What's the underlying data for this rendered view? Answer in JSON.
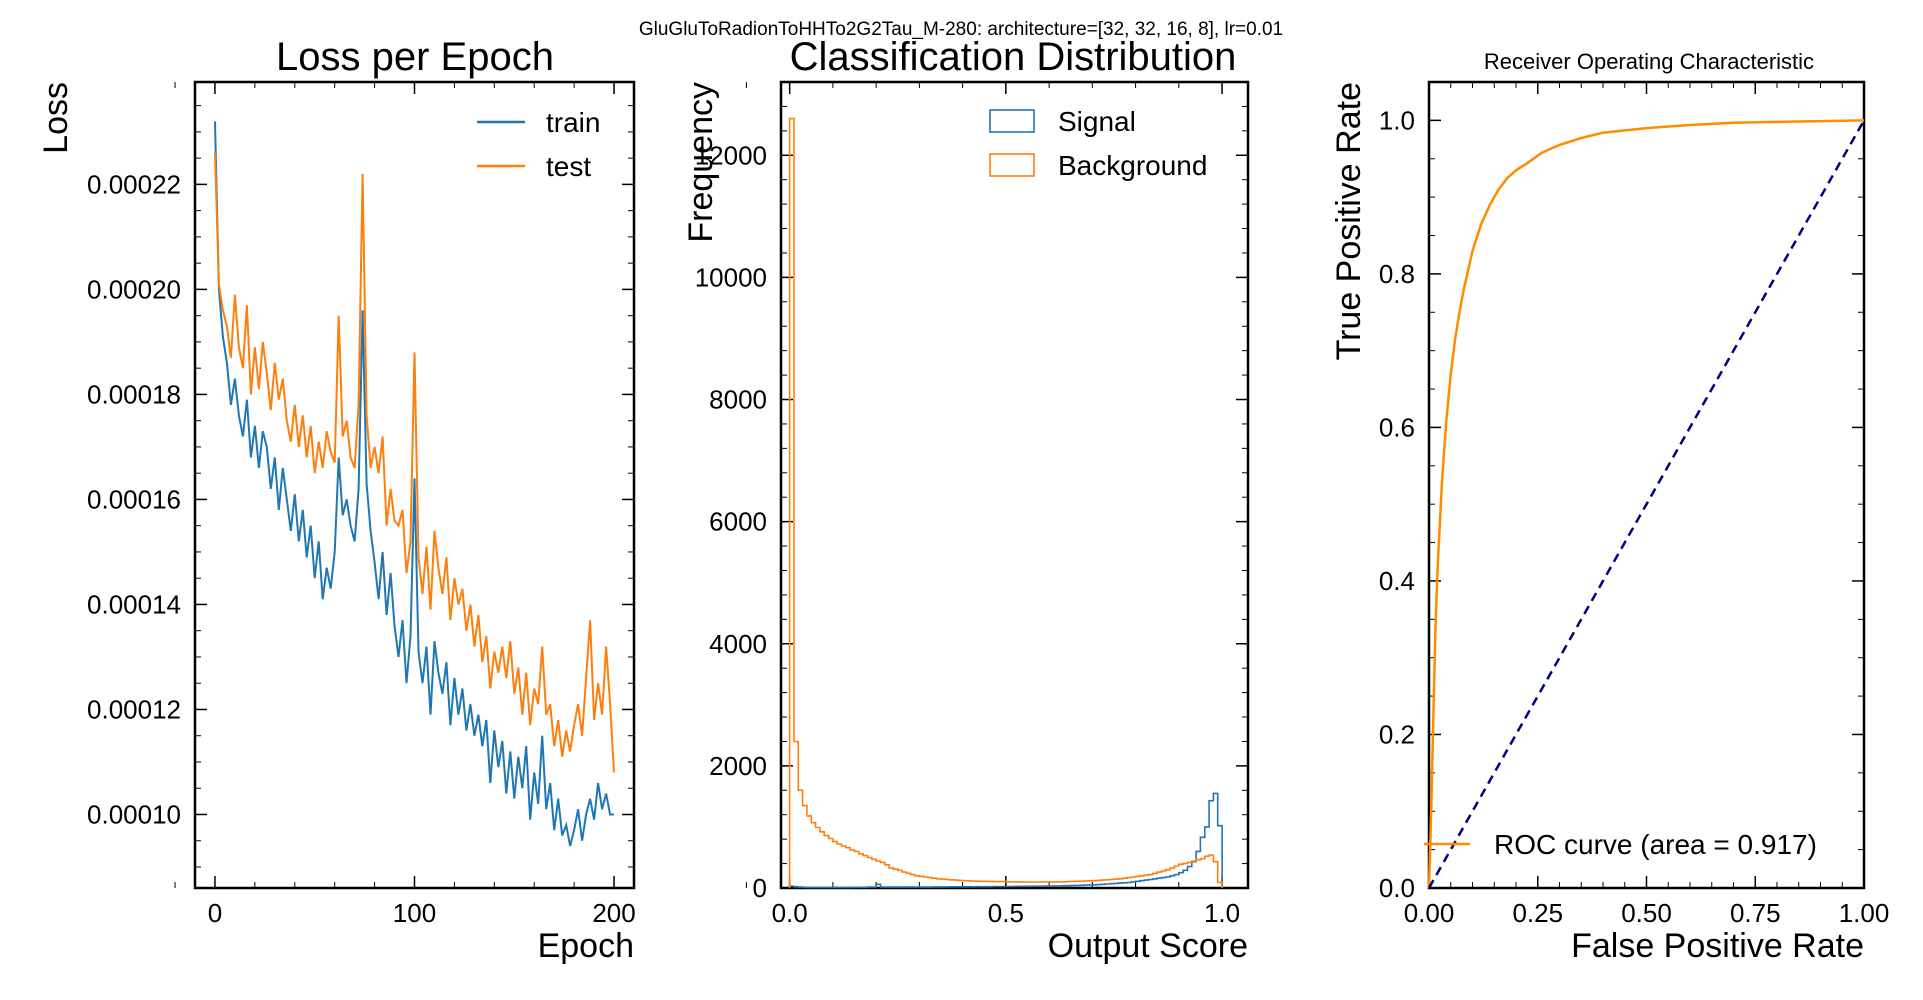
{
  "figure": {
    "suptitle": "GluGluToRadionToHHTo2G2Tau_M-280: architecture=[32, 32, 16, 8], lr=0.01"
  },
  "chart_data": [
    {
      "type": "line",
      "title": "Loss per Epoch",
      "xlabel": "Epoch",
      "ylabel": "Loss",
      "xlim": [
        -10,
        210
      ],
      "ylim": [
        8.6e-05,
        0.0002395
      ],
      "xticks": [
        0,
        100,
        200
      ],
      "xtick_labels": [
        "0",
        "100",
        "200"
      ],
      "yticks": [
        0.0001,
        0.00012,
        0.00014,
        0.00016,
        0.00018,
        0.0002,
        0.00022
      ],
      "ytick_labels": [
        "0.00010",
        "0.00012",
        "0.00014",
        "0.00016",
        "0.00018",
        "0.00020",
        "0.00022"
      ],
      "legend_position": "top-right",
      "series": [
        {
          "name": "train",
          "color": "#1f77b4",
          "x": [
            0,
            2,
            4,
            6,
            8,
            10,
            12,
            14,
            16,
            18,
            20,
            22,
            24,
            26,
            28,
            30,
            32,
            34,
            36,
            38,
            40,
            42,
            44,
            46,
            48,
            50,
            52,
            54,
            56,
            58,
            60,
            62,
            64,
            66,
            68,
            70,
            72,
            74,
            76,
            78,
            80,
            82,
            84,
            86,
            88,
            90,
            92,
            94,
            96,
            98,
            100,
            102,
            104,
            106,
            108,
            110,
            112,
            114,
            116,
            118,
            120,
            122,
            124,
            126,
            128,
            130,
            132,
            134,
            136,
            138,
            140,
            142,
            144,
            146,
            148,
            150,
            152,
            154,
            156,
            158,
            160,
            162,
            164,
            166,
            168,
            170,
            172,
            174,
            176,
            178,
            180,
            182,
            184,
            186,
            188,
            190,
            192,
            194,
            196,
            198,
            200
          ],
          "y": [
            0.000232,
            0.0002,
            0.000191,
            0.000186,
            0.000178,
            0.000183,
            0.000176,
            0.000172,
            0.000179,
            0.000168,
            0.000174,
            0.000166,
            0.000173,
            0.00017,
            0.000162,
            0.000168,
            0.000158,
            0.000166,
            0.00016,
            0.000154,
            0.000161,
            0.000152,
            0.000158,
            0.000149,
            0.000155,
            0.000145,
            0.000152,
            0.000141,
            0.000147,
            0.000143,
            0.00015,
            0.000168,
            0.000157,
            0.00016,
            0.000155,
            0.000152,
            0.000162,
            0.000196,
            0.000163,
            0.000154,
            0.000148,
            0.000141,
            0.00015,
            0.000138,
            0.000146,
            0.000136,
            0.00013,
            0.000137,
            0.000125,
            0.000134,
            0.000164,
            0.000131,
            0.000125,
            0.000132,
            0.000119,
            0.000133,
            0.000127,
            0.000123,
            0.000129,
            0.000117,
            0.000126,
            0.000119,
            0.000124,
            0.000116,
            0.000121,
            0.000115,
            0.000119,
            0.000113,
            0.000118,
            0.000106,
            0.000116,
            0.000109,
            0.000114,
            0.000104,
            0.000112,
            0.000103,
            0.000111,
            0.000105,
            0.000113,
            9.9e-05,
            0.000108,
            0.000102,
            0.000115,
            0.000101,
            0.000106,
            9.7e-05,
            0.000103,
            9.6e-05,
            9.8e-05,
            9.4e-05,
            9.7e-05,
            0.000101,
            9.5e-05,
            0.0001,
            0.000103,
            9.9e-05,
            0.000106,
            0.000101,
            0.000104,
            0.0001,
            0.0001
          ]
        },
        {
          "name": "test",
          "color": "#ff7f0e",
          "x": [
            0,
            2,
            4,
            6,
            8,
            10,
            12,
            14,
            16,
            18,
            20,
            22,
            24,
            26,
            28,
            30,
            32,
            34,
            36,
            38,
            40,
            42,
            44,
            46,
            48,
            50,
            52,
            54,
            56,
            58,
            60,
            62,
            64,
            66,
            68,
            70,
            72,
            74,
            76,
            78,
            80,
            82,
            84,
            86,
            88,
            90,
            92,
            94,
            96,
            98,
            100,
            102,
            104,
            106,
            108,
            110,
            112,
            114,
            116,
            118,
            120,
            122,
            124,
            126,
            128,
            130,
            132,
            134,
            136,
            138,
            140,
            142,
            144,
            146,
            148,
            150,
            152,
            154,
            156,
            158,
            160,
            162,
            164,
            166,
            168,
            170,
            172,
            174,
            176,
            178,
            180,
            182,
            184,
            186,
            188,
            190,
            192,
            194,
            196,
            198,
            200
          ],
          "y": [
            0.000226,
            0.000201,
            0.000196,
            0.000193,
            0.000187,
            0.000199,
            0.000189,
            0.000185,
            0.000197,
            0.00018,
            0.000189,
            0.000181,
            0.00019,
            0.000184,
            0.000177,
            0.000186,
            0.000179,
            0.000183,
            0.000175,
            0.000171,
            0.000178,
            0.00017,
            0.000176,
            0.000168,
            0.000174,
            0.000165,
            0.000171,
            0.000166,
            0.000173,
            0.000169,
            0.000167,
            0.000195,
            0.000172,
            0.000175,
            0.000168,
            0.000166,
            0.000178,
            0.000222,
            0.000176,
            0.000166,
            0.00017,
            0.000165,
            0.000172,
            0.000155,
            0.000162,
            0.000156,
            0.000155,
            0.000158,
            0.000146,
            0.000152,
            0.000188,
            0.000149,
            0.000142,
            0.000151,
            0.000139,
            0.000154,
            0.000147,
            0.000142,
            0.000149,
            0.000137,
            0.000145,
            0.00014,
            0.000143,
            0.000135,
            0.00014,
            0.000132,
            0.000138,
            0.000129,
            0.000134,
            0.000124,
            0.000131,
            0.000127,
            0.000132,
            0.000126,
            0.000133,
            0.000123,
            0.000128,
            0.000119,
            0.000127,
            0.000117,
            0.000124,
            0.000121,
            0.000132,
            0.000119,
            0.000121,
            0.000113,
            0.000118,
            0.000111,
            0.000116,
            0.000112,
            0.000117,
            0.000121,
            0.000115,
            0.000126,
            0.000137,
            0.000118,
            0.000125,
            0.000119,
            0.000132,
            0.000121,
            0.000108
          ]
        }
      ]
    },
    {
      "type": "histogram",
      "title": "Classification Distribution",
      "xlabel": "Output Score",
      "ylabel": "Frequency",
      "xlim": [
        -0.02,
        1.06
      ],
      "ylim": [
        0,
        13200
      ],
      "xticks": [
        0.0,
        0.5,
        1.0
      ],
      "xtick_labels": [
        "0.0",
        "0.5",
        "1.0"
      ],
      "yticks": [
        0,
        2000,
        4000,
        6000,
        8000,
        10000,
        12000
      ],
      "ytick_labels": [
        "0",
        "2000",
        "4000",
        "6000",
        "8000",
        "10000",
        "12000"
      ],
      "legend_position": "top-right",
      "bin_edges": [
        0.0,
        0.01,
        0.02,
        0.03,
        0.04,
        0.05,
        0.06,
        0.07,
        0.08,
        0.09,
        0.1,
        0.11,
        0.12,
        0.13,
        0.14,
        0.15,
        0.16,
        0.17,
        0.18,
        0.19,
        0.2,
        0.21,
        0.22,
        0.23,
        0.24,
        0.25,
        0.26,
        0.27,
        0.28,
        0.29,
        0.3,
        0.31,
        0.32,
        0.33,
        0.34,
        0.35,
        0.36,
        0.37,
        0.38,
        0.39,
        0.4,
        0.41,
        0.42,
        0.43,
        0.44,
        0.45,
        0.46,
        0.47,
        0.48,
        0.49,
        0.5,
        0.51,
        0.52,
        0.53,
        0.54,
        0.55,
        0.56,
        0.57,
        0.58,
        0.59,
        0.6,
        0.61,
        0.62,
        0.63,
        0.64,
        0.65,
        0.66,
        0.67,
        0.68,
        0.69,
        0.7,
        0.71,
        0.72,
        0.73,
        0.74,
        0.75,
        0.76,
        0.77,
        0.78,
        0.79,
        0.8,
        0.81,
        0.82,
        0.83,
        0.84,
        0.85,
        0.86,
        0.87,
        0.88,
        0.89,
        0.9,
        0.91,
        0.92,
        0.93,
        0.94,
        0.95,
        0.96,
        0.97,
        0.98,
        0.99,
        1.0
      ],
      "series": [
        {
          "name": "Signal",
          "color": "#1f77b4",
          "counts": [
            30,
            20,
            15,
            12,
            10,
            10,
            10,
            10,
            10,
            10,
            10,
            10,
            10,
            10,
            12,
            12,
            12,
            12,
            15,
            15,
            60,
            15,
            15,
            15,
            15,
            15,
            15,
            15,
            15,
            15,
            15,
            15,
            15,
            18,
            18,
            18,
            18,
            20,
            20,
            20,
            20,
            20,
            20,
            22,
            22,
            22,
            22,
            25,
            25,
            25,
            25,
            25,
            28,
            28,
            28,
            28,
            30,
            30,
            30,
            32,
            32,
            35,
            35,
            38,
            38,
            40,
            42,
            45,
            48,
            50,
            52,
            55,
            60,
            65,
            70,
            75,
            80,
            85,
            90,
            100,
            110,
            120,
            130,
            140,
            150,
            160,
            170,
            180,
            200,
            220,
            250,
            290,
            350,
            430,
            600,
            830,
            1000,
            1430,
            1550,
            1020
          ]
        },
        {
          "name": "Background",
          "color": "#ff7f0e",
          "counts": [
            12600,
            2400,
            1600,
            1350,
            1180,
            1070,
            990,
            920,
            860,
            810,
            760,
            720,
            690,
            660,
            620,
            600,
            560,
            530,
            500,
            470,
            440,
            420,
            380,
            330,
            310,
            290,
            260,
            240,
            220,
            200,
            190,
            180,
            170,
            160,
            150,
            145,
            140,
            135,
            130,
            125,
            120,
            118,
            115,
            112,
            110,
            110,
            108,
            105,
            105,
            105,
            102,
            100,
            100,
            100,
            98,
            98,
            98,
            98,
            98,
            100,
            100,
            100,
            100,
            102,
            105,
            108,
            110,
            112,
            115,
            118,
            120,
            125,
            130,
            135,
            140,
            145,
            150,
            160,
            170,
            180,
            190,
            200,
            210,
            220,
            240,
            260,
            280,
            300,
            330,
            360,
            390,
            400,
            420,
            440,
            460,
            480,
            520,
            540,
            430,
            90
          ]
        }
      ]
    },
    {
      "type": "line",
      "title": "Receiver Operating Characteristic",
      "xlabel": "False Positive Rate",
      "ylabel": "True Positive Rate",
      "xlim": [
        0.0,
        1.0
      ],
      "ylim": [
        0.0,
        1.05
      ],
      "xticks": [
        0.0,
        0.25,
        0.5,
        0.75,
        1.0
      ],
      "xtick_labels": [
        "0.00",
        "0.25",
        "0.50",
        "0.75",
        "1.00"
      ],
      "yticks": [
        0.0,
        0.2,
        0.4,
        0.6,
        0.8,
        1.0
      ],
      "ytick_labels": [
        "0.0",
        "0.2",
        "0.4",
        "0.6",
        "0.8",
        "1.0"
      ],
      "legend_position": "lower-right",
      "series": [
        {
          "name": "ROC curve (area = 0.917)",
          "color": "#ff8c00",
          "x": [
            0.0,
            0.005,
            0.01,
            0.015,
            0.02,
            0.03,
            0.04,
            0.05,
            0.06,
            0.07,
            0.08,
            0.1,
            0.12,
            0.14,
            0.16,
            0.18,
            0.2,
            0.22,
            0.24,
            0.26,
            0.3,
            0.35,
            0.4,
            0.5,
            0.6,
            0.7,
            0.8,
            0.9,
            1.0
          ],
          "y": [
            0.0,
            0.1,
            0.22,
            0.34,
            0.42,
            0.53,
            0.61,
            0.67,
            0.715,
            0.75,
            0.78,
            0.83,
            0.865,
            0.89,
            0.91,
            0.925,
            0.935,
            0.942,
            0.95,
            0.958,
            0.968,
            0.977,
            0.984,
            0.99,
            0.994,
            0.997,
            0.998,
            0.999,
            1.0
          ]
        },
        {
          "name": "",
          "color": "#000080",
          "style": "dashed",
          "x": [
            0.0,
            1.0
          ],
          "y": [
            0.0,
            1.0
          ]
        }
      ]
    }
  ]
}
